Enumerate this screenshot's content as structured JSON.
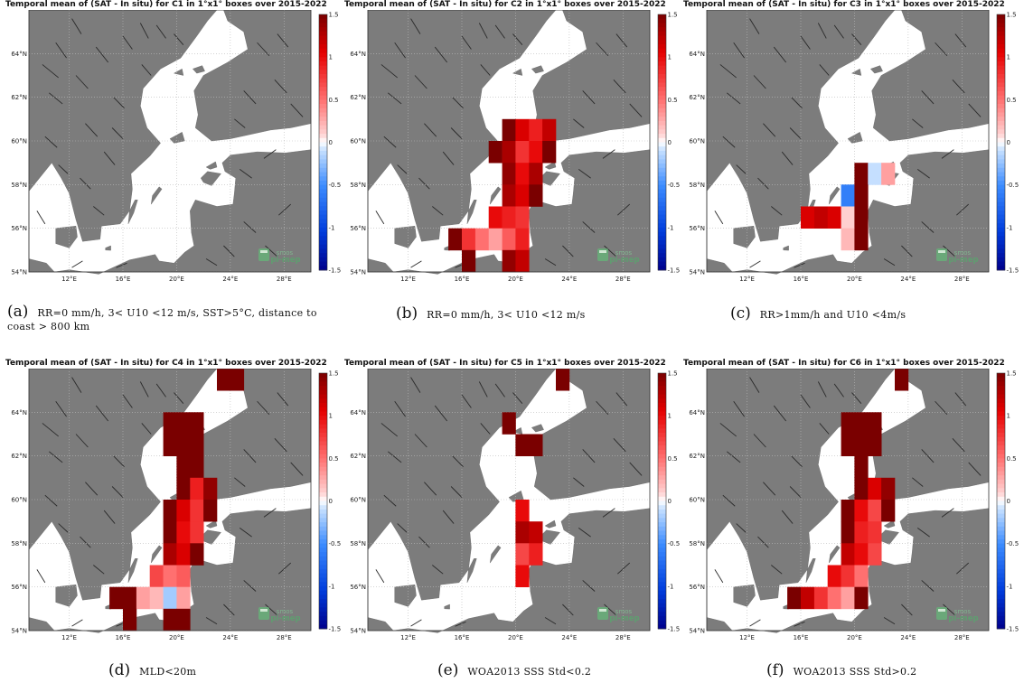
{
  "chart_data": [
    {
      "type": "heatmap",
      "panel": "C1",
      "title": "Temporal mean of (SAT - In situ) for C1 in 1°x1° boxes over 2015-2022",
      "caption_label": "(a)",
      "caption": "RR=0 mm/h, 3< U10 <12 m/s, SST>5°C, distance to coast > 800 km",
      "cells": []
    },
    {
      "type": "heatmap",
      "panel": "C2",
      "title": "Temporal mean of (SAT - In situ) for C2 in 1°x1° boxes over 2015-2022",
      "caption_label": "(b)",
      "caption": "RR=0 mm/h, 3< U10 <12 m/s",
      "cells": [
        {
          "lon": 19,
          "lat": 60,
          "v": 1.5
        },
        {
          "lon": 20,
          "lat": 60,
          "v": 1.1
        },
        {
          "lon": 21,
          "lat": 60,
          "v": 0.9
        },
        {
          "lon": 22,
          "lat": 60,
          "v": 1.2
        },
        {
          "lon": 18,
          "lat": 59,
          "v": 1.5
        },
        {
          "lon": 19,
          "lat": 59,
          "v": 1.3
        },
        {
          "lon": 20,
          "lat": 59,
          "v": 0.8
        },
        {
          "lon": 21,
          "lat": 59,
          "v": 1.0
        },
        {
          "lon": 22,
          "lat": 59,
          "v": 1.5
        },
        {
          "lon": 19,
          "lat": 58,
          "v": 1.4
        },
        {
          "lon": 20,
          "lat": 58,
          "v": 1.0
        },
        {
          "lon": 21,
          "lat": 58,
          "v": 1.3
        },
        {
          "lon": 19,
          "lat": 57,
          "v": 1.3
        },
        {
          "lon": 20,
          "lat": 57,
          "v": 1.1
        },
        {
          "lon": 21,
          "lat": 57,
          "v": 1.5
        },
        {
          "lon": 18,
          "lat": 56,
          "v": 1.0
        },
        {
          "lon": 19,
          "lat": 56,
          "v": 0.9
        },
        {
          "lon": 20,
          "lat": 56,
          "v": 0.8
        },
        {
          "lon": 15,
          "lat": 55,
          "v": 1.5
        },
        {
          "lon": 16,
          "lat": 55,
          "v": 0.8
        },
        {
          "lon": 17,
          "lat": 55,
          "v": 0.5
        },
        {
          "lon": 18,
          "lat": 55,
          "v": 0.3
        },
        {
          "lon": 19,
          "lat": 55,
          "v": 0.6
        },
        {
          "lon": 20,
          "lat": 55,
          "v": 0.9
        },
        {
          "lon": 16,
          "lat": 54,
          "v": 1.5
        },
        {
          "lon": 19,
          "lat": 54,
          "v": 1.4
        },
        {
          "lon": 20,
          "lat": 54,
          "v": 1.2
        }
      ]
    },
    {
      "type": "heatmap",
      "panel": "C3",
      "title": "Temporal mean of (SAT - In situ) for C3 in 1°x1° boxes over 2015-2022",
      "caption_label": "(c)",
      "caption": "RR>1mm/h and U10 <4m/s",
      "cells": [
        {
          "lon": 20,
          "lat": 58,
          "v": 1.5
        },
        {
          "lon": 21,
          "lat": 58,
          "v": -0.1
        },
        {
          "lon": 22,
          "lat": 58,
          "v": 0.3
        },
        {
          "lon": 19,
          "lat": 57,
          "v": -0.6
        },
        {
          "lon": 20,
          "lat": 57,
          "v": 1.5
        },
        {
          "lon": 16,
          "lat": 56,
          "v": 1.1
        },
        {
          "lon": 17,
          "lat": 56,
          "v": 1.2
        },
        {
          "lon": 18,
          "lat": 56,
          "v": 1.1
        },
        {
          "lon": 19,
          "lat": 56,
          "v": 0.1
        },
        {
          "lon": 20,
          "lat": 56,
          "v": 1.5
        },
        {
          "lon": 19,
          "lat": 55,
          "v": 0.2
        },
        {
          "lon": 20,
          "lat": 55,
          "v": 1.5
        }
      ]
    },
    {
      "type": "heatmap",
      "panel": "C4",
      "title": "Temporal mean of (SAT - In situ) for C4 in 1°x1° boxes over 2015-2022",
      "caption_label": "(d)",
      "caption": "MLD<20m",
      "cells": [
        {
          "lon": 23,
          "lat": 65,
          "v": 1.5
        },
        {
          "lon": 24,
          "lat": 65,
          "v": 1.5
        },
        {
          "lon": 19,
          "lat": 63,
          "v": 1.5
        },
        {
          "lon": 20,
          "lat": 63,
          "v": 1.5
        },
        {
          "lon": 21,
          "lat": 63,
          "v": 1.5
        },
        {
          "lon": 19,
          "lat": 62,
          "v": 1.5
        },
        {
          "lon": 20,
          "lat": 62,
          "v": 1.5
        },
        {
          "lon": 21,
          "lat": 62,
          "v": 1.5
        },
        {
          "lon": 20,
          "lat": 61,
          "v": 1.5
        },
        {
          "lon": 21,
          "lat": 61,
          "v": 1.5
        },
        {
          "lon": 20,
          "lat": 60,
          "v": 1.5
        },
        {
          "lon": 21,
          "lat": 60,
          "v": 0.9
        },
        {
          "lon": 22,
          "lat": 60,
          "v": 1.4
        },
        {
          "lon": 19,
          "lat": 59,
          "v": 1.5
        },
        {
          "lon": 20,
          "lat": 59,
          "v": 1.1
        },
        {
          "lon": 21,
          "lat": 59,
          "v": 0.8
        },
        {
          "lon": 22,
          "lat": 59,
          "v": 1.5
        },
        {
          "lon": 19,
          "lat": 58,
          "v": 1.5
        },
        {
          "lon": 20,
          "lat": 58,
          "v": 1.0
        },
        {
          "lon": 21,
          "lat": 58,
          "v": 0.8
        },
        {
          "lon": 19,
          "lat": 57,
          "v": 1.3
        },
        {
          "lon": 20,
          "lat": 57,
          "v": 1.1
        },
        {
          "lon": 21,
          "lat": 57,
          "v": 1.5
        },
        {
          "lon": 18,
          "lat": 56,
          "v": 0.7
        },
        {
          "lon": 19,
          "lat": 56,
          "v": 0.5
        },
        {
          "lon": 20,
          "lat": 56,
          "v": 0.6
        },
        {
          "lon": 15,
          "lat": 55,
          "v": 1.5
        },
        {
          "lon": 16,
          "lat": 55,
          "v": 1.5
        },
        {
          "lon": 17,
          "lat": 55,
          "v": 0.3
        },
        {
          "lon": 18,
          "lat": 55,
          "v": 0.2
        },
        {
          "lon": 19,
          "lat": 55,
          "v": -0.2
        },
        {
          "lon": 20,
          "lat": 55,
          "v": 0.3
        },
        {
          "lon": 16,
          "lat": 54,
          "v": 1.5
        },
        {
          "lon": 19,
          "lat": 54,
          "v": 1.5
        },
        {
          "lon": 20,
          "lat": 54,
          "v": 1.5
        }
      ]
    },
    {
      "type": "heatmap",
      "panel": "C5",
      "title": "Temporal mean of (SAT - In situ) for C5 in 1°x1° boxes over 2015-2022",
      "caption_label": "(e)",
      "caption": "WOA2013 SSS Std<0.2",
      "cells": [
        {
          "lon": 23,
          "lat": 65,
          "v": 1.5
        },
        {
          "lon": 19,
          "lat": 63,
          "v": 1.5
        },
        {
          "lon": 20,
          "lat": 62,
          "v": 1.5
        },
        {
          "lon": 21,
          "lat": 62,
          "v": 1.5
        },
        {
          "lon": 20,
          "lat": 59,
          "v": 1.0
        },
        {
          "lon": 20,
          "lat": 58,
          "v": 1.3
        },
        {
          "lon": 21,
          "lat": 58,
          "v": 1.2
        },
        {
          "lon": 20,
          "lat": 57,
          "v": 0.7
        },
        {
          "lon": 21,
          "lat": 57,
          "v": 0.9
        },
        {
          "lon": 20,
          "lat": 56,
          "v": 1.0
        }
      ]
    },
    {
      "type": "heatmap",
      "panel": "C6",
      "title": "Temporal mean of (SAT - In situ) for C6 in 1°x1° boxes over 2015-2022",
      "caption_label": "(f)",
      "caption": "WOA2013 SSS Std>0.2",
      "cells": [
        {
          "lon": 23,
          "lat": 65,
          "v": 1.5
        },
        {
          "lon": 19,
          "lat": 63,
          "v": 1.5
        },
        {
          "lon": 20,
          "lat": 63,
          "v": 1.5
        },
        {
          "lon": 21,
          "lat": 63,
          "v": 1.5
        },
        {
          "lon": 19,
          "lat": 62,
          "v": 1.5
        },
        {
          "lon": 20,
          "lat": 62,
          "v": 1.5
        },
        {
          "lon": 21,
          "lat": 62,
          "v": 1.5
        },
        {
          "lon": 20,
          "lat": 61,
          "v": 1.5
        },
        {
          "lon": 20,
          "lat": 60,
          "v": 1.5
        },
        {
          "lon": 21,
          "lat": 60,
          "v": 1.1
        },
        {
          "lon": 22,
          "lat": 60,
          "v": 1.4
        },
        {
          "lon": 19,
          "lat": 59,
          "v": 1.5
        },
        {
          "lon": 20,
          "lat": 59,
          "v": 1.0
        },
        {
          "lon": 21,
          "lat": 59,
          "v": 0.7
        },
        {
          "lon": 22,
          "lat": 59,
          "v": 1.5
        },
        {
          "lon": 19,
          "lat": 58,
          "v": 1.5
        },
        {
          "lon": 20,
          "lat": 58,
          "v": 0.9
        },
        {
          "lon": 21,
          "lat": 58,
          "v": 0.8
        },
        {
          "lon": 19,
          "lat": 57,
          "v": 1.2
        },
        {
          "lon": 20,
          "lat": 57,
          "v": 1.0
        },
        {
          "lon": 21,
          "lat": 57,
          "v": 0.7
        },
        {
          "lon": 18,
          "lat": 56,
          "v": 1.0
        },
        {
          "lon": 19,
          "lat": 56,
          "v": 0.8
        },
        {
          "lon": 20,
          "lat": 56,
          "v": 0.5
        },
        {
          "lon": 15,
          "lat": 55,
          "v": 1.5
        },
        {
          "lon": 16,
          "lat": 55,
          "v": 1.2
        },
        {
          "lon": 17,
          "lat": 55,
          "v": 0.8
        },
        {
          "lon": 18,
          "lat": 55,
          "v": 0.5
        },
        {
          "lon": 19,
          "lat": 55,
          "v": 0.3
        },
        {
          "lon": 20,
          "lat": 55,
          "v": 1.5
        }
      ]
    }
  ],
  "axes": {
    "xticks": [
      "12°E",
      "16°E",
      "20°E",
      "24°E",
      "28°E"
    ],
    "xtick_values": [
      12,
      16,
      20,
      24,
      28
    ],
    "yticks": [
      "54°N",
      "56°N",
      "58°N",
      "60°N",
      "62°N",
      "64°N"
    ],
    "ytick_values": [
      54,
      56,
      58,
      60,
      62,
      64
    ],
    "lon_range": [
      9,
      30
    ],
    "lat_range": [
      54,
      66
    ]
  },
  "colorbar": {
    "ticks": [
      "1.5",
      "1",
      "0.5",
      "0",
      "-0.5",
      "-1",
      "-1.5"
    ],
    "range": [
      -1.5,
      1.5
    ]
  },
  "logo": {
    "line1": "smos",
    "line2": "pi-mep"
  },
  "colors": {
    "land": "#7c7c7c",
    "sea": "#ffffff",
    "neg_max": "#00008c",
    "pos_max": "#7a0000"
  }
}
